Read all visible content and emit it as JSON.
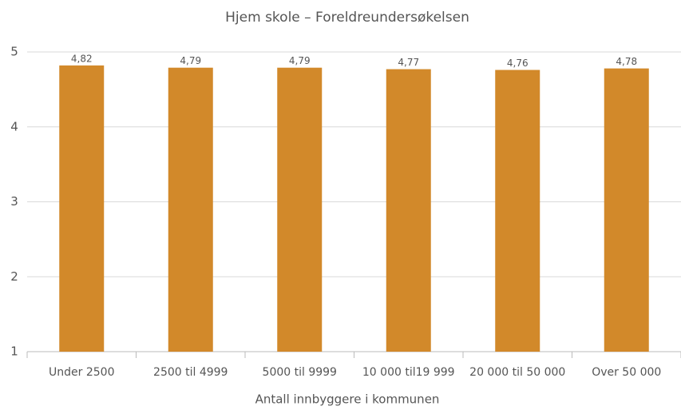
{
  "chart_data": {
    "type": "bar",
    "title": "Hjem skole – Foreldreundersøkelsen",
    "x_label": "Antall innbyggere i kommunen",
    "categories": [
      "Under 2500",
      "2500 til 4999",
      "5000 til 9999",
      "10 000 til19 999",
      "20 000 til 50 000",
      "Over 50 000"
    ],
    "values": [
      4.82,
      4.79,
      4.79,
      4.77,
      4.76,
      4.78
    ],
    "value_labels": [
      "4,82",
      "4,79",
      "4,79",
      "4,77",
      "4,76",
      "4,78"
    ],
    "color": "#d2892a",
    "ylim": [
      1,
      5
    ],
    "yticks": [
      1,
      2,
      3,
      4,
      5
    ],
    "grid": true
  }
}
